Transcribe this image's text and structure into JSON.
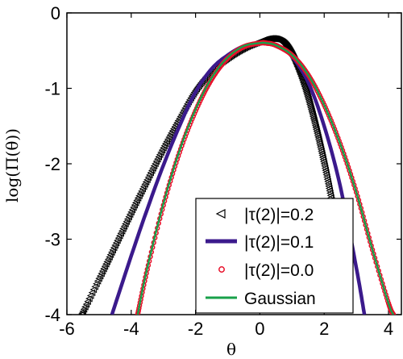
{
  "chart_data": {
    "type": "line",
    "xlabel": "θ",
    "ylabel": "log(Π(θ))",
    "xlim": [
      -6,
      4.4
    ],
    "ylim": [
      -4,
      0
    ],
    "x_ticks": [
      -6,
      -4,
      -2,
      0,
      2,
      4
    ],
    "y_ticks": [
      0,
      -1,
      -2,
      -3,
      -4
    ],
    "grid": false,
    "legend_position": "bottom-right",
    "series": [
      {
        "name": "|τ(2)|=0.2",
        "color": "#000000",
        "marker": "triangle-left",
        "x": [
          -5.55,
          -5,
          -4.5,
          -4,
          -3.5,
          -3,
          -2.5,
          -2,
          -1.5,
          -1,
          -0.5,
          0,
          0.2,
          0.4,
          0.6,
          0.8,
          1,
          1.2,
          1.4,
          1.6,
          1.8,
          2,
          2.2,
          2.4,
          2.6,
          2.8
        ],
        "y": [
          -4.0,
          -3.52,
          -3.08,
          -2.64,
          -2.21,
          -1.79,
          -1.4,
          -1.03,
          -0.77,
          -0.6,
          -0.47,
          -0.38,
          -0.35,
          -0.34,
          -0.36,
          -0.42,
          -0.55,
          -0.74,
          -0.98,
          -1.28,
          -1.62,
          -2.0,
          -2.42,
          -2.87,
          -3.34,
          -3.82
        ]
      },
      {
        "name": "|τ(2)|=0.1",
        "color": "#3b1a8c",
        "x": [
          -4.6,
          -4,
          -3.5,
          -3,
          -2.5,
          -2,
          -1.5,
          -1,
          -0.5,
          0,
          0.3,
          0.6,
          1,
          1.5,
          2,
          2.5,
          3,
          3.25
        ],
        "y": [
          -4.0,
          -3.22,
          -2.6,
          -2.02,
          -1.5,
          -1.05,
          -0.74,
          -0.56,
          -0.44,
          -0.4,
          -0.4,
          -0.44,
          -0.58,
          -0.92,
          -1.5,
          -2.3,
          -3.38,
          -4.0
        ]
      },
      {
        "name": "|τ(2)|=0.0",
        "color": "#e8102a",
        "marker": "circle",
        "x": [
          -3.8,
          -3.5,
          -3,
          -2.5,
          -2,
          -1.5,
          -1,
          -0.5,
          0,
          0.2,
          0.5,
          1,
          1.5,
          2,
          2.5,
          3,
          3.5,
          4,
          4.15
        ],
        "y": [
          -4.0,
          -3.4,
          -2.55,
          -1.85,
          -1.3,
          -0.88,
          -0.6,
          -0.45,
          -0.4,
          -0.4,
          -0.43,
          -0.56,
          -0.82,
          -1.22,
          -1.74,
          -2.38,
          -3.14,
          -3.85,
          -4.0
        ]
      },
      {
        "name": "Gaussian",
        "color": "#18a04a",
        "x": [
          -3.8,
          -3.5,
          -3,
          -2.5,
          -2,
          -1.5,
          -1,
          -0.5,
          0,
          0.2,
          0.5,
          1,
          1.5,
          2,
          2.5,
          3,
          3.5,
          4,
          4.15
        ],
        "y": [
          -4.0,
          -3.38,
          -2.53,
          -1.83,
          -1.28,
          -0.86,
          -0.59,
          -0.44,
          -0.4,
          -0.4,
          -0.43,
          -0.56,
          -0.82,
          -1.22,
          -1.74,
          -2.38,
          -3.14,
          -3.85,
          -4.0
        ]
      }
    ]
  }
}
